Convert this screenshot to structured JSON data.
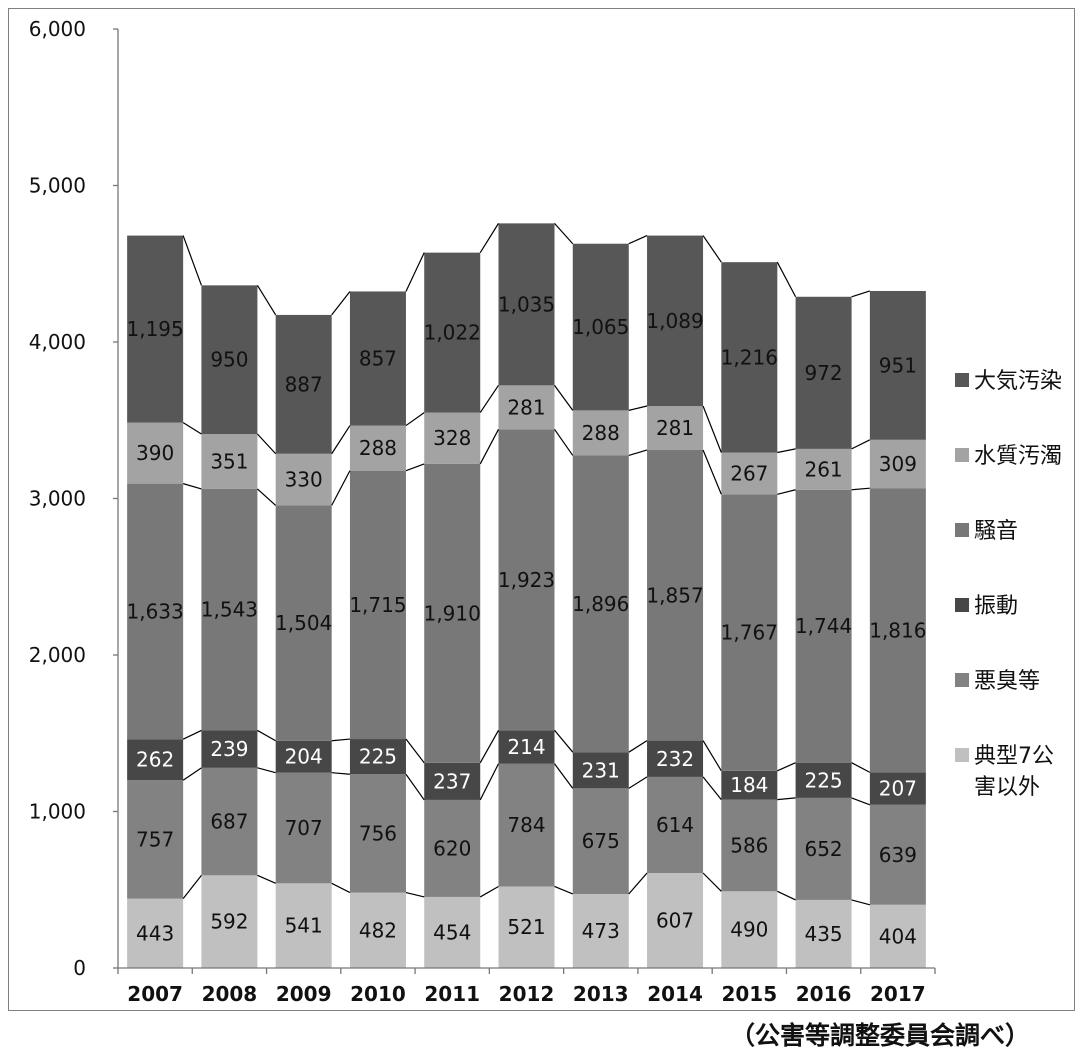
{
  "chart_data": {
    "type": "bar",
    "stacked": true,
    "categories": [
      "2007",
      "2008",
      "2009",
      "2010",
      "2011",
      "2012",
      "2013",
      "2014",
      "2015",
      "2016",
      "2017"
    ],
    "ylim": [
      0,
      6000
    ],
    "yticks": [
      0,
      1000,
      2000,
      3000,
      4000,
      5000,
      6000
    ],
    "ytick_labels": [
      "0",
      "1,000",
      "2,000",
      "3,000",
      "4,000",
      "5,000",
      "6,000"
    ],
    "series_lines": true,
    "legend_position": "right",
    "series": [
      {
        "name": "典型7公害以外",
        "color": "#c0c0c0",
        "text_color": "#111111",
        "values": [
          443,
          592,
          541,
          482,
          454,
          521,
          473,
          607,
          490,
          435,
          404
        ],
        "labels": [
          "443",
          "592",
          "541",
          "482",
          "454",
          "521",
          "473",
          "607",
          "490",
          "435",
          "404"
        ]
      },
      {
        "name": "悪臭等",
        "color": "#828282",
        "text_color": "#111111",
        "values": [
          757,
          687,
          707,
          756,
          620,
          784,
          675,
          614,
          586,
          652,
          639
        ],
        "labels": [
          "757",
          "687",
          "707",
          "756",
          "620",
          "784",
          "675",
          "614",
          "586",
          "652",
          "639"
        ]
      },
      {
        "name": "振動",
        "color": "#474747",
        "text_color": "#ffffff",
        "values": [
          262,
          239,
          204,
          225,
          237,
          214,
          231,
          232,
          184,
          225,
          207
        ],
        "labels": [
          "262",
          "239",
          "204",
          "225",
          "237",
          "214",
          "231",
          "232",
          "184",
          "225",
          "207"
        ]
      },
      {
        "name": "騒音",
        "color": "#787878",
        "text_color": "#111111",
        "values": [
          1633,
          1543,
          1504,
          1715,
          1910,
          1923,
          1896,
          1857,
          1767,
          1744,
          1816
        ],
        "labels": [
          "1,633",
          "1,543",
          "1,504",
          "1,715",
          "1,910",
          "1,923",
          "1,896",
          "1,857",
          "1,767",
          "1,744",
          "1,816"
        ]
      },
      {
        "name": "水質汚濁",
        "color": "#a3a3a3",
        "text_color": "#111111",
        "values": [
          390,
          351,
          330,
          288,
          328,
          281,
          288,
          281,
          267,
          261,
          309
        ],
        "labels": [
          "390",
          "351",
          "330",
          "288",
          "328",
          "281",
          "288",
          "281",
          "267",
          "261",
          "309"
        ]
      },
      {
        "name": "大気汚染",
        "color": "#575757",
        "text_color": "#111111",
        "values": [
          1195,
          950,
          887,
          857,
          1022,
          1035,
          1065,
          1089,
          1216,
          972,
          951
        ],
        "labels": [
          "1,195",
          "950",
          "887",
          "857",
          "1,022",
          "1,035",
          "1,065",
          "1,089",
          "1,216",
          "972",
          "951"
        ]
      }
    ]
  },
  "legend": {
    "items": [
      {
        "label": "大気汚染",
        "color": "#575757"
      },
      {
        "label": "水質汚濁",
        "color": "#a3a3a3"
      },
      {
        "label": "騒音",
        "color": "#787878"
      },
      {
        "label": "振動",
        "color": "#474747"
      },
      {
        "label": "悪臭等",
        "color": "#828282"
      },
      {
        "label": "典型7公",
        "label_line2": "害以外",
        "color": "#c0c0c0"
      }
    ]
  },
  "source_note": "（公害等調整委員会調べ）"
}
